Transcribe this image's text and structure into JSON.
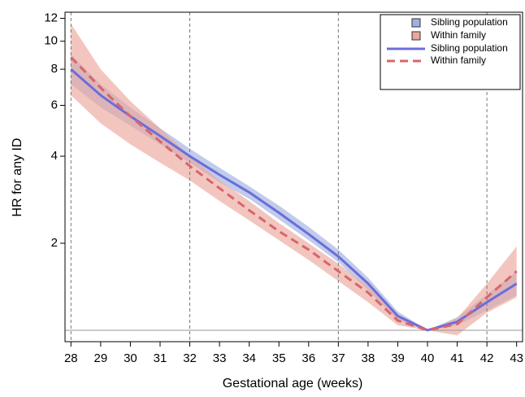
{
  "chart_data": {
    "type": "line",
    "x_label": "Gestational age (weeks)",
    "y_label": "HR for any ID",
    "log_y": true,
    "x": [
      28,
      29,
      30,
      31,
      32,
      33,
      34,
      35,
      36,
      37,
      38,
      39,
      40,
      41,
      42,
      43
    ],
    "xlim": [
      27.8,
      43.2
    ],
    "xticks": [
      28,
      29,
      30,
      31,
      32,
      33,
      34,
      35,
      36,
      37,
      38,
      39,
      40,
      41,
      42,
      43
    ],
    "ylim": [
      0.913,
      12.6
    ],
    "yticks": [
      2,
      4,
      6,
      8,
      10,
      12
    ],
    "vlines": [
      28,
      32,
      37,
      42
    ],
    "hline": 1,
    "bands": [
      {
        "name": "Sibling population",
        "color": "#9fb0e0",
        "lower": [
          7.1,
          5.9,
          5.1,
          4.4,
          3.8,
          3.25,
          2.85,
          2.42,
          2.05,
          1.72,
          1.38,
          1.08,
          1.0,
          1.04,
          1.17,
          1.32
        ],
        "upper": [
          9.0,
          7.1,
          5.9,
          5.0,
          4.25,
          3.65,
          3.15,
          2.7,
          2.28,
          1.9,
          1.52,
          1.16,
          1.0,
          1.11,
          1.33,
          1.6
        ]
      },
      {
        "name": "Within family",
        "color": "#eba79c",
        "lower": [
          6.5,
          5.2,
          4.4,
          3.8,
          3.3,
          2.8,
          2.4,
          2.05,
          1.75,
          1.48,
          1.25,
          1.04,
          1.0,
          0.96,
          1.15,
          1.3
        ],
        "upper": [
          11.5,
          8.0,
          6.2,
          5.0,
          4.0,
          3.3,
          2.8,
          2.35,
          2.0,
          1.7,
          1.42,
          1.12,
          1.0,
          1.1,
          1.45,
          1.95
        ]
      }
    ],
    "series": [
      {
        "name": "Sibling population",
        "color": "#6b6ddb",
        "dashed": false,
        "values": [
          8.0,
          6.5,
          5.5,
          4.7,
          4.0,
          3.45,
          3.0,
          2.55,
          2.15,
          1.8,
          1.45,
          1.12,
          1.0,
          1.07,
          1.25,
          1.45
        ]
      },
      {
        "name": "Within family",
        "color": "#d8656b",
        "dashed": true,
        "values": [
          8.8,
          6.9,
          5.5,
          4.5,
          3.7,
          3.1,
          2.6,
          2.2,
          1.9,
          1.6,
          1.35,
          1.08,
          1.0,
          1.05,
          1.3,
          1.6
        ]
      }
    ]
  }
}
